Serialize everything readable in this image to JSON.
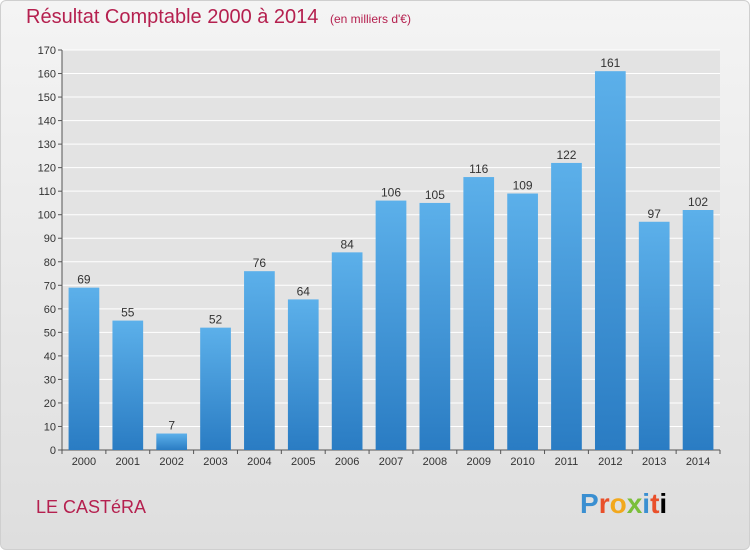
{
  "header": {
    "title": "Résultat Comptable 2000 à 2014",
    "subtitle": "(en milliers d'€)"
  },
  "commune": "LE CASTéRA",
  "logo": {
    "letters": [
      "P",
      "r",
      "o",
      "x",
      "i",
      "t",
      "i"
    ]
  },
  "chart_data": {
    "type": "bar",
    "title": "Résultat Comptable 2000 à 2014",
    "subtitle": "(en milliers d'€)",
    "xlabel": "",
    "ylabel": "",
    "categories": [
      "2000",
      "2001",
      "2002",
      "2003",
      "2004",
      "2005",
      "2006",
      "2007",
      "2008",
      "2009",
      "2010",
      "2011",
      "2012",
      "2013",
      "2014"
    ],
    "values": [
      69,
      55,
      7,
      52,
      76,
      64,
      84,
      106,
      105,
      116,
      109,
      122,
      161,
      97,
      102
    ],
    "ylim": [
      0,
      170
    ],
    "yticks": [
      0,
      10,
      20,
      30,
      40,
      50,
      60,
      70,
      80,
      90,
      100,
      110,
      120,
      130,
      140,
      150,
      160,
      170
    ],
    "grid": true,
    "legend": "none",
    "colors": {
      "bar": "#4a9fe0",
      "bar_dark": "#2a7cc3",
      "grid": "#ffffff",
      "text": "#333333",
      "title": "#b5204f"
    }
  }
}
